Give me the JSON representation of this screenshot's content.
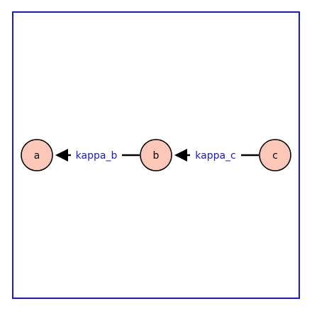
{
  "colors": {
    "frame": "#1a1acc",
    "node_fill": "#fdc8b8",
    "node_stroke": "#000000",
    "edge": "#000000",
    "edge_label": "#1a1acc",
    "background": "#ffffff"
  },
  "nodes": [
    {
      "id": "a",
      "label": "a"
    },
    {
      "id": "b",
      "label": "b"
    },
    {
      "id": "c",
      "label": "c"
    }
  ],
  "edges": [
    {
      "from": "b",
      "to": "a",
      "label": "kappa_b"
    },
    {
      "from": "c",
      "to": "b",
      "label": "kappa_c"
    }
  ]
}
